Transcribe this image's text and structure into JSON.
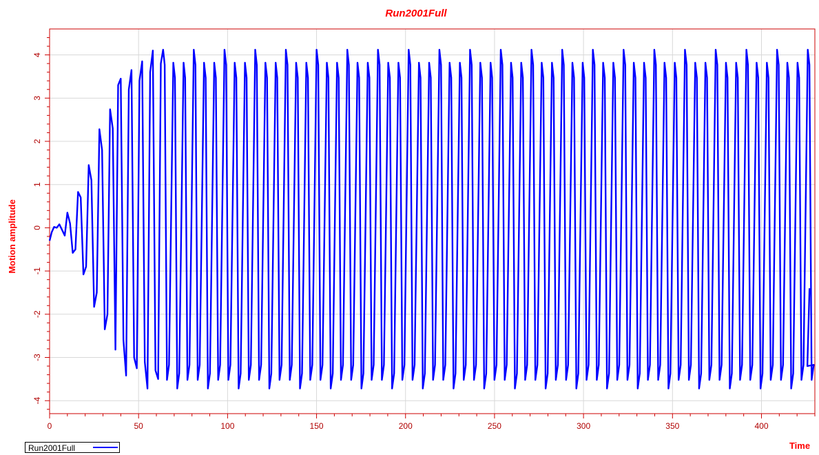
{
  "chart_data": {
    "type": "line",
    "title": "Run2001Full",
    "xlabel": "Time",
    "ylabel": "Motion amplitude",
    "xlim": [
      0,
      430
    ],
    "ylim": [
      -4.3,
      4.6
    ],
    "x_ticks": [
      0,
      50,
      100,
      150,
      200,
      250,
      300,
      350,
      400
    ],
    "y_ticks": [
      -4,
      -3,
      -2,
      -1,
      0,
      1,
      2,
      3,
      4
    ],
    "grid": true,
    "legend_position": "bottom-left",
    "series": [
      {
        "name": "Run2001Full",
        "color": "#0000ff",
        "description_points": [
          [
            0,
            -0.3
          ],
          [
            1.2,
            -0.1
          ],
          [
            2.5,
            0.02
          ],
          [
            4,
            0.0
          ],
          [
            5.5,
            0.08
          ],
          [
            7,
            -0.05
          ],
          [
            8.5,
            -0.18
          ],
          [
            10,
            0.35
          ],
          [
            11.5,
            0.1
          ],
          [
            13,
            -0.58
          ],
          [
            14.5,
            -0.5
          ],
          [
            16,
            0.83
          ],
          [
            17.5,
            0.7
          ],
          [
            19,
            -1.08
          ],
          [
            20.5,
            -0.9
          ],
          [
            22,
            1.45
          ],
          [
            23.5,
            1.1
          ],
          [
            25,
            -1.83
          ],
          [
            26.5,
            -1.5
          ],
          [
            28,
            2.28
          ],
          [
            29.5,
            1.8
          ],
          [
            31,
            -2.35
          ],
          [
            32.5,
            -2.0
          ],
          [
            34,
            2.74
          ],
          [
            35.5,
            2.3
          ],
          [
            37,
            -2.82
          ],
          [
            38.5,
            3.3
          ],
          [
            40,
            3.45
          ],
          [
            41.5,
            -2.6
          ],
          [
            43,
            -3.42
          ],
          [
            44.5,
            3.2
          ],
          [
            46,
            3.65
          ],
          [
            47.5,
            -3.0
          ],
          [
            49,
            -3.25
          ],
          [
            50.5,
            3.4
          ],
          [
            52,
            3.85
          ],
          [
            53.5,
            -3.1
          ],
          [
            55,
            -3.72
          ],
          [
            56.5,
            3.6
          ],
          [
            58,
            4.1
          ],
          [
            59.5,
            -3.3
          ],
          [
            61,
            -3.5
          ],
          [
            62.5,
            3.8
          ]
        ],
        "steady_state": {
          "x_start": 62.5,
          "x_end": 425,
          "period": 5.75,
          "max": 4.12,
          "min": -3.72
        }
      }
    ]
  }
}
